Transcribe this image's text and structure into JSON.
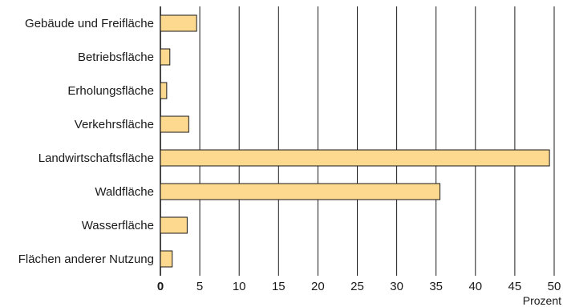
{
  "chart_data": {
    "type": "bar",
    "orientation": "horizontal",
    "categories": [
      "Gebäude und Freifläche",
      "Betriebsfläche",
      "Erholungsfläche",
      "Verkehrsfläche",
      "Landwirtschaftsfläche",
      "Waldfläche",
      "Wasserfläche",
      "Flächen anderer Nutzung"
    ],
    "values": [
      4.6,
      1.2,
      0.8,
      3.6,
      49.4,
      35.5,
      3.4,
      1.5
    ],
    "xlabel": "Prozent",
    "ylabel": "",
    "xlim": [
      0,
      50
    ],
    "xticks": [
      "0",
      "5",
      "10",
      "15",
      "20",
      "25",
      "30",
      "35",
      "40",
      "45",
      "50"
    ],
    "grid": "vertical",
    "colors": {
      "bar_fill": "#fdd88f",
      "bar_stroke": "#1a1a1a",
      "grid": "#1a1a1a"
    }
  }
}
